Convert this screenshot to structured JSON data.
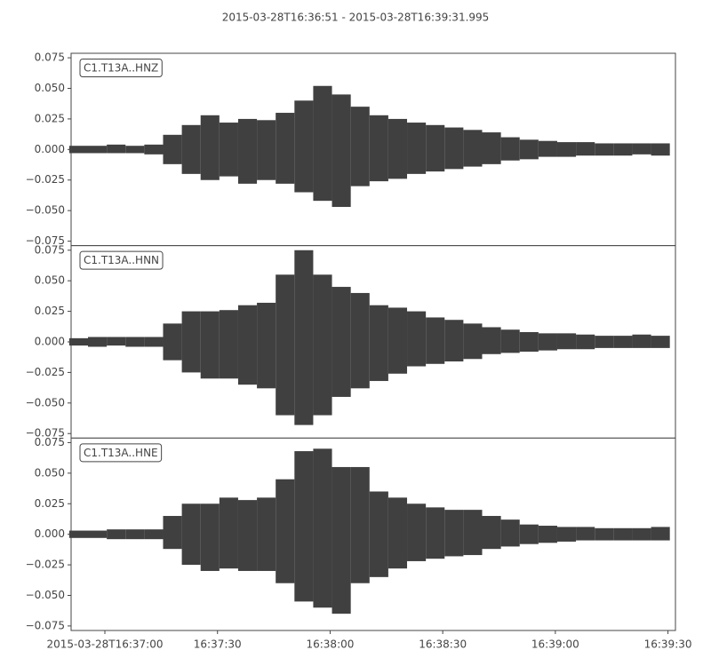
{
  "title": "2015-03-28T16:36:51  -  2015-03-28T16:39:31.995",
  "chart_data": [
    {
      "type": "band",
      "label": "C1.T13A..HNZ",
      "x": [
        "2015-03-28T16:36:53",
        "2015-03-28T16:36:58",
        "2015-03-28T16:37:03",
        "2015-03-28T16:37:08",
        "2015-03-28T16:37:13",
        "2015-03-28T16:37:18",
        "2015-03-28T16:37:23",
        "2015-03-28T16:37:28",
        "2015-03-28T16:37:33",
        "2015-03-28T16:37:38",
        "2015-03-28T16:37:43",
        "2015-03-28T16:37:48",
        "2015-03-28T16:37:53",
        "2015-03-28T16:37:58",
        "2015-03-28T16:38:03",
        "2015-03-28T16:38:08",
        "2015-03-28T16:38:13",
        "2015-03-28T16:38:18",
        "2015-03-28T16:38:23",
        "2015-03-28T16:38:28",
        "2015-03-28T16:38:33",
        "2015-03-28T16:38:38",
        "2015-03-28T16:38:43",
        "2015-03-28T16:38:48",
        "2015-03-28T16:38:53",
        "2015-03-28T16:38:58",
        "2015-03-28T16:39:03",
        "2015-03-28T16:39:08",
        "2015-03-28T16:39:13",
        "2015-03-28T16:39:18",
        "2015-03-28T16:39:23",
        "2015-03-28T16:39:28"
      ],
      "series": [
        {
          "color": "#404040",
          "values": [
            0.003,
            0.003,
            0.004,
            0.003,
            0.004,
            0.012,
            0.02,
            0.028,
            0.022,
            0.025,
            0.024,
            0.03,
            0.04,
            0.052,
            0.045,
            0.035,
            0.028,
            0.025,
            0.022,
            0.02,
            0.018,
            0.016,
            0.014,
            0.01,
            0.008,
            0.007,
            0.006,
            0.006,
            0.005,
            0.005,
            0.005,
            0.005
          ]
        },
        {
          "color": "#404040",
          "values": [
            -0.003,
            -0.003,
            -0.003,
            -0.003,
            -0.004,
            -0.012,
            -0.02,
            -0.025,
            -0.022,
            -0.028,
            -0.025,
            -0.028,
            -0.035,
            -0.042,
            -0.047,
            -0.03,
            -0.026,
            -0.024,
            -0.02,
            -0.018,
            -0.016,
            -0.014,
            -0.012,
            -0.009,
            -0.008,
            -0.006,
            -0.006,
            -0.005,
            -0.005,
            -0.005,
            -0.004,
            -0.005
          ]
        }
      ],
      "xlim": [
        "2015-03-28T16:36:51",
        "2015-03-28T16:39:31.995"
      ],
      "ylim": [
        -0.0787,
        0.0787
      ],
      "yticks": [
        {
          "value": -0.075,
          "label": "−0.075"
        },
        {
          "value": -0.05,
          "label": "−0.050"
        },
        {
          "value": -0.025,
          "label": "−0.025"
        },
        {
          "value": 0,
          "label": "0.000"
        },
        {
          "value": 0.025,
          "label": "0.025"
        },
        {
          "value": 0.05,
          "label": "0.050"
        },
        {
          "value": 0.075,
          "label": "0.075"
        }
      ]
    },
    {
      "type": "band",
      "label": "C1.T13A..HNN",
      "x": [
        "2015-03-28T16:36:53",
        "2015-03-28T16:36:58",
        "2015-03-28T16:37:03",
        "2015-03-28T16:37:08",
        "2015-03-28T16:37:13",
        "2015-03-28T16:37:18",
        "2015-03-28T16:37:23",
        "2015-03-28T16:37:28",
        "2015-03-28T16:37:33",
        "2015-03-28T16:37:38",
        "2015-03-28T16:37:43",
        "2015-03-28T16:37:48",
        "2015-03-28T16:37:53",
        "2015-03-28T16:37:58",
        "2015-03-28T16:38:03",
        "2015-03-28T16:38:08",
        "2015-03-28T16:38:13",
        "2015-03-28T16:38:18",
        "2015-03-28T16:38:23",
        "2015-03-28T16:38:28",
        "2015-03-28T16:38:33",
        "2015-03-28T16:38:38",
        "2015-03-28T16:38:43",
        "2015-03-28T16:38:48",
        "2015-03-28T16:38:53",
        "2015-03-28T16:38:58",
        "2015-03-28T16:39:03",
        "2015-03-28T16:39:08",
        "2015-03-28T16:39:13",
        "2015-03-28T16:39:18",
        "2015-03-28T16:39:23",
        "2015-03-28T16:39:28"
      ],
      "series": [
        {
          "color": "#404040",
          "values": [
            0.003,
            0.004,
            0.004,
            0.004,
            0.004,
            0.015,
            0.025,
            0.025,
            0.026,
            0.03,
            0.032,
            0.055,
            0.075,
            0.055,
            0.045,
            0.04,
            0.03,
            0.028,
            0.025,
            0.02,
            0.018,
            0.015,
            0.012,
            0.01,
            0.008,
            0.007,
            0.007,
            0.006,
            0.005,
            0.005,
            0.006,
            0.005
          ]
        },
        {
          "color": "#404040",
          "values": [
            -0.003,
            -0.004,
            -0.003,
            -0.004,
            -0.004,
            -0.015,
            -0.025,
            -0.03,
            -0.03,
            -0.035,
            -0.038,
            -0.06,
            -0.068,
            -0.06,
            -0.045,
            -0.038,
            -0.032,
            -0.026,
            -0.02,
            -0.018,
            -0.016,
            -0.014,
            -0.01,
            -0.009,
            -0.008,
            -0.007,
            -0.006,
            -0.006,
            -0.005,
            -0.005,
            -0.005,
            -0.005
          ]
        }
      ],
      "xlim": [
        "2015-03-28T16:36:51",
        "2015-03-28T16:39:31.995"
      ],
      "ylim": [
        -0.0787,
        0.0787
      ],
      "yticks": [
        {
          "value": -0.075,
          "label": "−0.075"
        },
        {
          "value": -0.05,
          "label": "−0.050"
        },
        {
          "value": -0.025,
          "label": "−0.025"
        },
        {
          "value": 0,
          "label": "0.000"
        },
        {
          "value": 0.025,
          "label": "0.025"
        },
        {
          "value": 0.05,
          "label": "0.050"
        },
        {
          "value": 0.075,
          "label": "0.075"
        }
      ]
    },
    {
      "type": "band",
      "label": "C1.T13A..HNE",
      "x": [
        "2015-03-28T16:36:53",
        "2015-03-28T16:36:58",
        "2015-03-28T16:37:03",
        "2015-03-28T16:37:08",
        "2015-03-28T16:37:13",
        "2015-03-28T16:37:18",
        "2015-03-28T16:37:23",
        "2015-03-28T16:37:28",
        "2015-03-28T16:37:33",
        "2015-03-28T16:37:38",
        "2015-03-28T16:37:43",
        "2015-03-28T16:37:48",
        "2015-03-28T16:37:53",
        "2015-03-28T16:37:58",
        "2015-03-28T16:38:03",
        "2015-03-28T16:38:08",
        "2015-03-28T16:38:13",
        "2015-03-28T16:38:18",
        "2015-03-28T16:38:23",
        "2015-03-28T16:38:28",
        "2015-03-28T16:38:33",
        "2015-03-28T16:38:38",
        "2015-03-28T16:38:43",
        "2015-03-28T16:38:48",
        "2015-03-28T16:38:53",
        "2015-03-28T16:38:58",
        "2015-03-28T16:39:03",
        "2015-03-28T16:39:08",
        "2015-03-28T16:39:13",
        "2015-03-28T16:39:18",
        "2015-03-28T16:39:23",
        "2015-03-28T16:39:28"
      ],
      "series": [
        {
          "color": "#404040",
          "values": [
            0.003,
            0.003,
            0.004,
            0.004,
            0.004,
            0.015,
            0.025,
            0.025,
            0.03,
            0.028,
            0.03,
            0.045,
            0.068,
            0.07,
            0.055,
            0.055,
            0.035,
            0.03,
            0.025,
            0.022,
            0.02,
            0.02,
            0.015,
            0.012,
            0.008,
            0.007,
            0.006,
            0.006,
            0.005,
            0.005,
            0.005,
            0.006
          ]
        },
        {
          "color": "#404040",
          "values": [
            -0.003,
            -0.003,
            -0.004,
            -0.004,
            -0.004,
            -0.012,
            -0.025,
            -0.03,
            -0.028,
            -0.03,
            -0.03,
            -0.04,
            -0.055,
            -0.06,
            -0.065,
            -0.04,
            -0.035,
            -0.028,
            -0.022,
            -0.02,
            -0.018,
            -0.017,
            -0.012,
            -0.01,
            -0.008,
            -0.007,
            -0.006,
            -0.005,
            -0.005,
            -0.005,
            -0.005,
            -0.005
          ]
        }
      ],
      "xlim": [
        "2015-03-28T16:36:51",
        "2015-03-28T16:39:31.995"
      ],
      "ylim": [
        -0.0787,
        0.0787
      ],
      "yticks": [
        {
          "value": -0.075,
          "label": "−0.075"
        },
        {
          "value": -0.05,
          "label": "−0.050"
        },
        {
          "value": -0.025,
          "label": "−0.025"
        },
        {
          "value": 0,
          "label": "0.000"
        },
        {
          "value": 0.025,
          "label": "0.025"
        },
        {
          "value": 0.05,
          "label": "0.050"
        },
        {
          "value": 0.075,
          "label": "0.075"
        }
      ],
      "xticks": [
        {
          "value": "2015-03-28T16:37:00",
          "label": "2015-03-28T16:37:00"
        },
        {
          "value": "2015-03-28T16:37:30",
          "label": "16:37:30"
        },
        {
          "value": "2015-03-28T16:38:00",
          "label": "16:38:00"
        },
        {
          "value": "2015-03-28T16:38:30",
          "label": "16:38:30"
        },
        {
          "value": "2015-03-28T16:39:00",
          "label": "16:39:00"
        },
        {
          "value": "2015-03-28T16:39:30",
          "label": "16:39:30"
        }
      ]
    }
  ]
}
